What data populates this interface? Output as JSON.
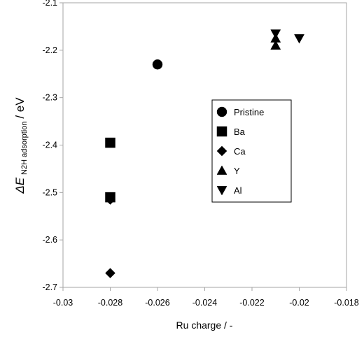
{
  "chart_data": {
    "type": "scatter",
    "title": "",
    "xlabel": "Ru charge / -",
    "ylabel": {
      "main": "ΔE",
      "subscript": "N2H adsorption",
      "unit": " / eV"
    },
    "xlim": [
      -0.03,
      -0.018
    ],
    "ylim": [
      -2.7,
      -2.1
    ],
    "x_ticks": [
      -0.03,
      -0.028,
      -0.026,
      -0.024,
      -0.022,
      -0.02,
      -0.018
    ],
    "x_tick_labels": [
      "-0.03",
      "-0.028",
      "-0.026",
      "-0.024",
      "-0.022",
      "-0.02",
      "-0.018"
    ],
    "y_ticks": [
      -2.7,
      -2.6,
      -2.5,
      -2.4,
      -2.3,
      -2.2,
      -2.1
    ],
    "y_tick_labels": [
      "-2.7",
      "-2.6",
      "-2.5",
      "-2.4",
      "-2.3",
      "-2.2",
      "-2.1"
    ],
    "grid": false,
    "legend": {
      "placement": "center-right"
    },
    "series": [
      {
        "name": "Pristine",
        "marker": "circle",
        "color": "#000000",
        "points": [
          {
            "x": -0.026,
            "y": -2.23
          }
        ]
      },
      {
        "name": "Ba",
        "marker": "square",
        "color": "#000000",
        "points": [
          {
            "x": -0.028,
            "y": -2.395
          },
          {
            "x": -0.028,
            "y": -2.51
          }
        ]
      },
      {
        "name": "Ca",
        "marker": "diamond",
        "color": "#000000",
        "points": [
          {
            "x": -0.028,
            "y": -2.515
          },
          {
            "x": -0.028,
            "y": -2.67
          }
        ]
      },
      {
        "name": "Y",
        "marker": "triangle-up",
        "color": "#000000",
        "points": [
          {
            "x": -0.021,
            "y": -2.19
          },
          {
            "x": -0.021,
            "y": -2.175
          }
        ]
      },
      {
        "name": "Al",
        "marker": "triangle-down",
        "color": "#000000",
        "points": [
          {
            "x": -0.021,
            "y": -2.165
          },
          {
            "x": -0.02,
            "y": -2.175
          }
        ]
      }
    ]
  }
}
